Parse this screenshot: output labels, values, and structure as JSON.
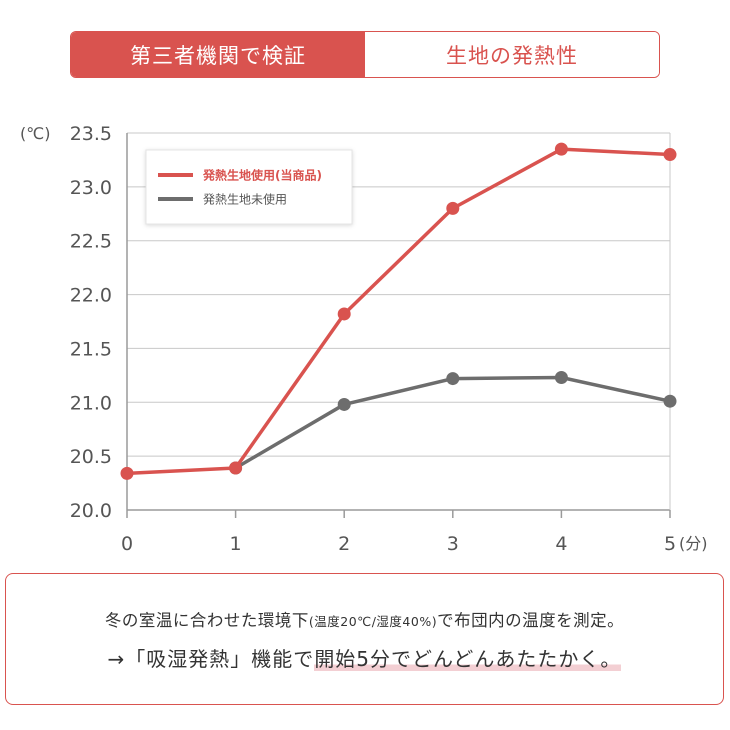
{
  "tabs": [
    {
      "label": "第三者機関で検証",
      "active": true
    },
    {
      "label": "生地の発熱性",
      "active": false
    }
  ],
  "chart_data": {
    "type": "line",
    "y_unit": "(℃)",
    "x_unit": "(分)",
    "x": [
      0,
      1,
      2,
      3,
      4,
      5
    ],
    "xticks": [
      "0",
      "1",
      "2",
      "3",
      "4",
      "5"
    ],
    "yticks": [
      "20.0",
      "20.5",
      "21.0",
      "21.5",
      "22.0",
      "22.5",
      "23.0",
      "23.5"
    ],
    "ylim": [
      20.0,
      23.5
    ],
    "grid": true,
    "legend_position": "top-left",
    "series": [
      {
        "name": "発熱生地使用(当商品)",
        "color": "#d9534f",
        "x": [
          0,
          1,
          2,
          3,
          4,
          5
        ],
        "values": [
          20.34,
          20.39,
          21.82,
          22.8,
          23.35,
          23.3
        ]
      },
      {
        "name": "発熱生地未使用",
        "color": "#6d6d6d",
        "x": [
          1,
          2,
          3,
          4,
          5
        ],
        "values": [
          20.39,
          20.98,
          21.22,
          21.23,
          21.01
        ]
      }
    ]
  },
  "note": {
    "line1_main": "冬の室温に合わせた環境下",
    "line1_small": "(温度20℃/湿度40%)",
    "line1_end": "で布団内の温度を測定。",
    "line2_prefix": "→「吸湿発熱」機能で",
    "line2_highlight": "開始5分でどんどんあたたかく。"
  },
  "colors": {
    "accent": "#d9534f",
    "gray_series": "#6d6d6d",
    "grid": "#c8c8c8",
    "highlight": "#f3cfd3"
  }
}
